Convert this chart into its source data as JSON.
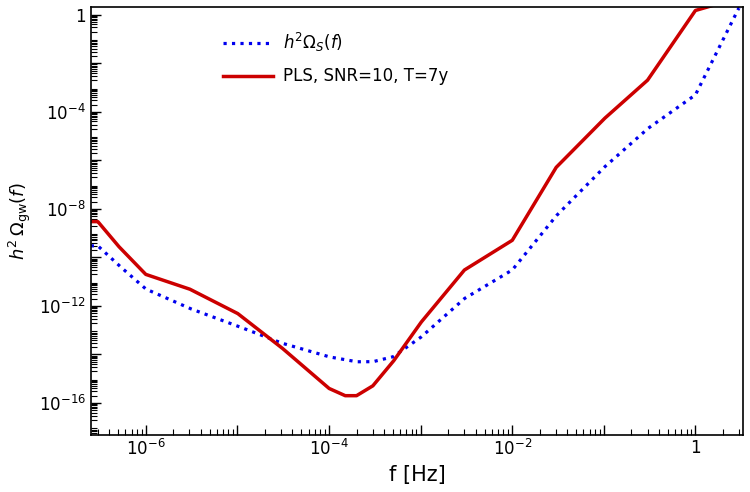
{
  "xlabel": "f [Hz]",
  "ylabel": "$h^2 \\, \\Omega_{\\mathrm{gw}}(f)$",
  "xlim_log": [
    -6.6,
    0.52
  ],
  "ylim_log": [
    -17.3,
    0.3
  ],
  "legend_label_blue": "$h^2 \\Omega_S(f)$",
  "legend_label_red": "PLS, SNR=10, T=7y",
  "blue_color": "#0000EE",
  "red_color": "#CC0000",
  "blue_linewidth": 2.3,
  "red_linewidth": 2.5,
  "background_color": "#FFFFFF",
  "xlabel_fontsize": 15,
  "ylabel_fontsize": 13,
  "legend_fontsize": 12,
  "tick_fontsize": 12,
  "noise_f": [
    3e-07,
    5e-07,
    1e-06,
    3e-06,
    1e-05,
    3e-05,
    0.0001,
    0.0002,
    0.0003,
    0.0005,
    0.001,
    0.003,
    0.01,
    0.03,
    0.1,
    0.3,
    1.0,
    3.0
  ],
  "noise_Om": [
    3e-10,
    5e-11,
    5e-12,
    8e-13,
    1.5e-13,
    3e-14,
    8e-15,
    5e-15,
    5e-15,
    8e-15,
    5e-14,
    2e-12,
    3e-11,
    5e-09,
    5e-07,
    2e-05,
    0.0005,
    2.0
  ],
  "pls_f": [
    3e-07,
    5e-07,
    1e-06,
    3e-06,
    1e-05,
    3e-05,
    0.0001,
    0.00015,
    0.0002,
    0.0003,
    0.0005,
    0.001,
    0.003,
    0.01,
    0.03,
    0.1,
    0.3,
    1.0,
    3.0
  ],
  "pls_Om": [
    3e-09,
    3e-10,
    2e-11,
    5e-12,
    5e-13,
    2e-14,
    4e-16,
    2e-16,
    2e-16,
    5e-16,
    5e-15,
    2e-13,
    3e-11,
    5e-10,
    5e-07,
    5e-05,
    0.002,
    1.5,
    5.0
  ]
}
